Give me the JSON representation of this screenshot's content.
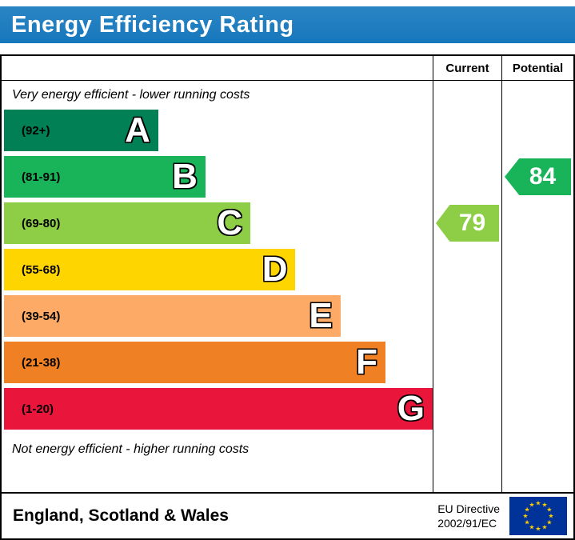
{
  "header": {
    "title": "Energy Efficiency Rating",
    "bar_color": "#1777bc"
  },
  "columns": {
    "current": "Current",
    "potential": "Potential"
  },
  "notes": {
    "top": "Very energy efficient - lower running costs",
    "bottom": "Not energy efficient - higher running costs"
  },
  "chart_data": {
    "type": "bar",
    "title": "Energy Efficiency Rating",
    "scale": [
      1,
      100
    ],
    "bands": [
      {
        "letter": "A",
        "range": "(92+)",
        "min": 92,
        "max": 100,
        "color": "#008054",
        "width_pct": 36
      },
      {
        "letter": "B",
        "range": "(81-91)",
        "min": 81,
        "max": 91,
        "color": "#19b459",
        "width_pct": 47
      },
      {
        "letter": "C",
        "range": "(69-80)",
        "min": 69,
        "max": 80,
        "color": "#8dce46",
        "width_pct": 57.5
      },
      {
        "letter": "D",
        "range": "(55-68)",
        "min": 55,
        "max": 68,
        "color": "#ffd500",
        "width_pct": 68
      },
      {
        "letter": "E",
        "range": "(39-54)",
        "min": 39,
        "max": 54,
        "color": "#fcaa65",
        "width_pct": 78.5
      },
      {
        "letter": "F",
        "range": "(21-38)",
        "min": 21,
        "max": 38,
        "color": "#ef8023",
        "width_pct": 89
      },
      {
        "letter": "G",
        "range": "(1-20)",
        "min": 1,
        "max": 20,
        "color": "#e9153b",
        "width_pct": 100
      }
    ],
    "current": {
      "label": "Current",
      "value": 79,
      "band": "C",
      "color": "#8dce46"
    },
    "potential": {
      "label": "Potential",
      "value": 84,
      "band": "B",
      "color": "#19b459"
    }
  },
  "footer": {
    "region": "England, Scotland & Wales",
    "directive_line1": "EU Directive",
    "directive_line2": "2002/91/EC",
    "flag_blue": "#003399",
    "flag_star": "#ffcc00"
  }
}
